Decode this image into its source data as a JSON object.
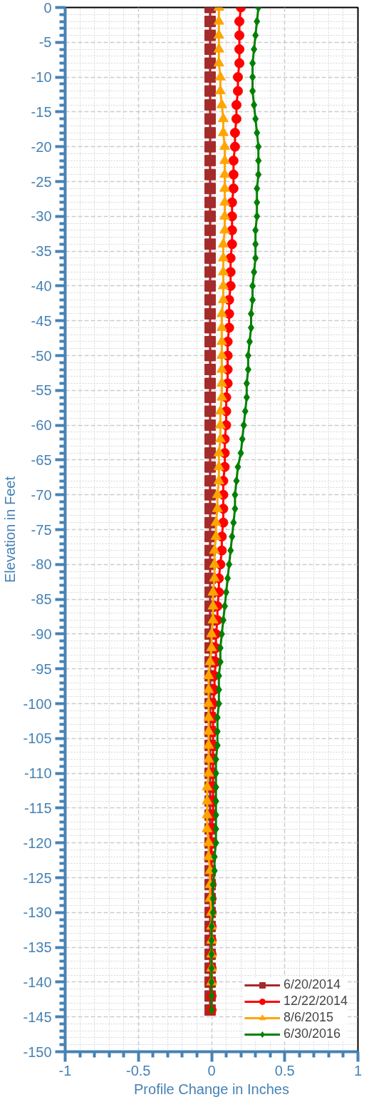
{
  "chart_data": {
    "type": "line",
    "orientation": "horizontal",
    "xlabel": "Profile Change in Inches",
    "ylabel": "Elevation in Feet",
    "x": [
      0,
      -2,
      -4,
      -6,
      -8,
      -10,
      -12,
      -14,
      -16,
      -18,
      -20,
      -22,
      -24,
      -26,
      -28,
      -30,
      -32,
      -34,
      -36,
      -38,
      -40,
      -42,
      -44,
      -46,
      -48,
      -50,
      -52,
      -54,
      -56,
      -58,
      -60,
      -62,
      -64,
      -66,
      -68,
      -70,
      -72,
      -74,
      -76,
      -78,
      -80,
      -82,
      -84,
      -86,
      -88,
      -90,
      -92,
      -94,
      -96,
      -98,
      -100,
      -102,
      -104,
      -106,
      -108,
      -110,
      -112,
      -114,
      -116,
      -118,
      -120,
      -122,
      -124,
      -126,
      -128,
      -130,
      -132,
      -134,
      -136,
      -138,
      -140,
      -142,
      -144
    ],
    "series": [
      {
        "name": "6/20/2014",
        "color": "#a52a2a",
        "marker": "square",
        "values": [
          -0.01,
          -0.01,
          -0.01,
          -0.01,
          -0.01,
          -0.01,
          -0.01,
          -0.01,
          -0.01,
          -0.01,
          -0.01,
          -0.01,
          -0.01,
          -0.01,
          -0.01,
          -0.01,
          -0.01,
          -0.01,
          -0.01,
          -0.01,
          -0.01,
          -0.01,
          -0.01,
          -0.01,
          -0.01,
          -0.01,
          -0.01,
          -0.01,
          -0.01,
          -0.01,
          -0.01,
          -0.01,
          -0.01,
          -0.01,
          -0.01,
          -0.01,
          -0.01,
          -0.01,
          -0.01,
          -0.01,
          -0.01,
          -0.01,
          -0.01,
          -0.01,
          -0.01,
          -0.01,
          -0.01,
          -0.01,
          -0.01,
          -0.01,
          -0.01,
          -0.01,
          -0.01,
          -0.01,
          -0.01,
          -0.01,
          -0.01,
          -0.01,
          -0.01,
          -0.01,
          -0.01,
          -0.01,
          -0.01,
          -0.01,
          -0.01,
          -0.01,
          -0.01,
          -0.01,
          -0.01,
          -0.01,
          -0.01,
          -0.01,
          -0.01
        ]
      },
      {
        "name": "12/22/2014",
        "color": "#ff0000",
        "marker": "circle",
        "values": [
          0.2,
          0.19,
          0.19,
          0.19,
          0.19,
          0.18,
          0.18,
          0.17,
          0.17,
          0.16,
          0.16,
          0.15,
          0.15,
          0.15,
          0.14,
          0.14,
          0.14,
          0.14,
          0.13,
          0.13,
          0.13,
          0.12,
          0.12,
          0.12,
          0.11,
          0.11,
          0.11,
          0.11,
          0.1,
          0.1,
          0.1,
          0.09,
          0.09,
          0.09,
          0.08,
          0.08,
          0.08,
          0.08,
          0.07,
          0.07,
          0.06,
          0.05,
          0.05,
          0.04,
          0.04,
          0.03,
          0.03,
          0.03,
          0.02,
          0.02,
          0.01,
          0.01,
          0.01,
          0.01,
          0.01,
          0.01,
          0.01,
          0.01,
          0.01,
          0,
          0,
          0,
          0,
          0,
          0,
          0,
          0,
          0,
          0,
          0,
          0,
          0,
          0
        ]
      },
      {
        "name": "8/6/2015",
        "color": "#ffa500",
        "marker": "triangle",
        "values": [
          0.05,
          0.05,
          0.05,
          0.05,
          0.05,
          0.06,
          0.06,
          0.07,
          0.08,
          0.08,
          0.09,
          0.09,
          0.09,
          0.09,
          0.09,
          0.09,
          0.09,
          0.08,
          0.08,
          0.08,
          0.08,
          0.08,
          0.07,
          0.07,
          0.07,
          0.07,
          0.07,
          0.07,
          0.07,
          0.06,
          0.06,
          0.06,
          0.05,
          0.05,
          0.05,
          0.04,
          0.04,
          0.03,
          0.03,
          0.02,
          0.02,
          0.02,
          0.01,
          0.01,
          0.01,
          0,
          0,
          -0.01,
          -0.02,
          -0.02,
          -0.02,
          -0.02,
          -0.02,
          -0.02,
          -0.02,
          -0.02,
          -0.03,
          -0.03,
          -0.03,
          -0.03,
          -0.02,
          -0.02,
          -0.01,
          -0.01,
          -0.01,
          0,
          0,
          0,
          0,
          0,
          0,
          null,
          null
        ]
      },
      {
        "name": "6/30/2016",
        "color": "#008000",
        "marker": "diamond",
        "values": [
          0.32,
          0.31,
          0.3,
          0.29,
          0.28,
          0.28,
          0.28,
          0.29,
          0.3,
          0.31,
          0.32,
          0.32,
          0.32,
          0.31,
          0.31,
          0.31,
          0.3,
          0.3,
          0.3,
          0.29,
          0.28,
          0.28,
          0.27,
          0.27,
          0.26,
          0.25,
          0.25,
          0.24,
          0.24,
          0.23,
          0.22,
          0.21,
          0.2,
          0.18,
          0.17,
          0.16,
          0.16,
          0.15,
          0.14,
          0.13,
          0.12,
          0.11,
          0.1,
          0.09,
          0.08,
          0.07,
          0.06,
          0.06,
          0.05,
          0.05,
          0.05,
          0.04,
          0.04,
          0.04,
          0.03,
          0.03,
          0.03,
          0.03,
          0.03,
          0.03,
          0.03,
          0.02,
          0.02,
          0.01,
          0.01,
          0.01,
          0,
          0,
          0,
          0,
          0,
          0,
          0
        ]
      }
    ],
    "xlim": [
      -1,
      1
    ],
    "xticks": [
      -1,
      -0.5,
      0,
      0.5,
      1
    ],
    "ylim": [
      -150,
      0
    ],
    "yticks": [
      0,
      -5,
      -10,
      -15,
      -20,
      -25,
      -30,
      -35,
      -40,
      -45,
      -50,
      -55,
      -60,
      -65,
      -70,
      -75,
      -80,
      -85,
      -90,
      -95,
      -100,
      -105,
      -110,
      -115,
      -120,
      -125,
      -130,
      -135,
      -140,
      -145,
      -150
    ],
    "grid": true,
    "legend": "bottom right",
    "line_style": "solid"
  }
}
